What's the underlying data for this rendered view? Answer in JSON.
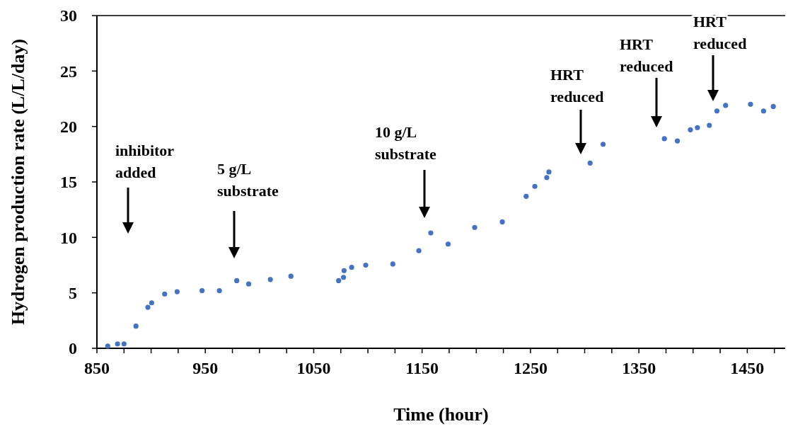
{
  "chart_data": {
    "type": "scatter",
    "xlabel": "Time (hour)",
    "ylabel": "Hydrogen production rate (L/L/day)",
    "xlim": [
      850,
      1485
    ],
    "ylim": [
      0,
      30
    ],
    "xticks": [
      850,
      {
        "value": 875,
        "label": null
      },
      {
        "value": 900,
        "label": null
      },
      {
        "value": 925,
        "label": null
      },
      950,
      {
        "value": 975,
        "label": null
      },
      {
        "value": 1000,
        "label": null
      },
      {
        "value": 1025,
        "label": null
      },
      1050,
      {
        "value": 1075,
        "label": null
      },
      {
        "value": 1100,
        "label": null
      },
      {
        "value": 1125,
        "label": null
      },
      1150,
      {
        "value": 1175,
        "label": null
      },
      {
        "value": 1200,
        "label": null
      },
      {
        "value": 1225,
        "label": null
      },
      1250,
      {
        "value": 1275,
        "label": null
      },
      {
        "value": 1300,
        "label": null
      },
      {
        "value": 1325,
        "label": null
      },
      1350,
      {
        "value": 1375,
        "label": null
      },
      {
        "value": 1400,
        "label": null
      },
      {
        "value": 1425,
        "label": null
      },
      1450,
      {
        "value": 1475,
        "label": null
      }
    ],
    "yticks": [
      0,
      5,
      10,
      15,
      20,
      25,
      30
    ],
    "marker": "circle",
    "grid": false,
    "series": [
      {
        "color": "#4472c4",
        "x": [
          860,
          869,
          875,
          886,
          897,
          900.5,
          912.5,
          924,
          947,
          963,
          979,
          990,
          1010,
          1029,
          1073,
          1077.5,
          1078,
          1085,
          1098,
          1123,
          1147,
          1158,
          1174,
          1198.5,
          1224,
          1246,
          1254,
          1265,
          1267,
          1305,
          1317,
          1373.5,
          1385.5,
          1397.5,
          1404,
          1415,
          1422,
          1430,
          1453,
          1465,
          1474
        ],
        "values": [
          0.2,
          0.4,
          0.4,
          2.0,
          3.7,
          4.1,
          4.9,
          5.1,
          5.2,
          5.2,
          6.1,
          5.8,
          6.2,
          6.5,
          6.1,
          6.4,
          7.0,
          7.3,
          7.5,
          7.6,
          8.8,
          10.4,
          9.4,
          10.9,
          11.4,
          13.7,
          14.6,
          15.4,
          15.9,
          16.7,
          18.4,
          18.9,
          18.7,
          19.7,
          19.9,
          20.1,
          21.4,
          21.9,
          22.0,
          21.4,
          21.8
        ]
      }
    ],
    "annotations": [
      "inhibitor\nadded",
      "5 g/L\nsubstrate",
      "10 g/L\nsubstrate",
      "HRT\nreduced",
      "HRT\nreduced",
      "HRT\nreduced"
    ]
  }
}
